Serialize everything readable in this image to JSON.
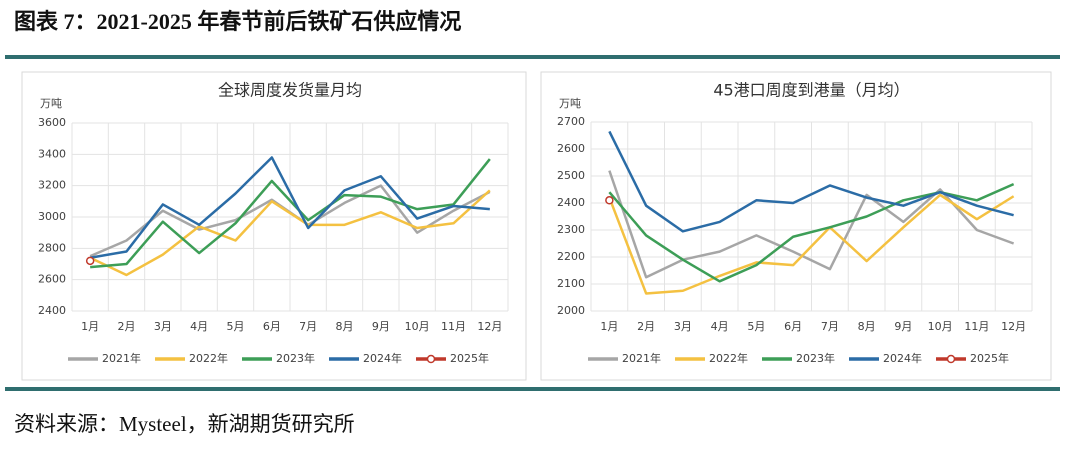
{
  "header": {
    "title": "图表 7：2021-2025 年春节前后铁矿石供应情况"
  },
  "source": "资料来源：Mysteel，新湖期货研究所",
  "chart_data": [
    {
      "type": "line",
      "title": "全球周度发货量月均",
      "y_unit_label": "万吨",
      "categories": [
        "1月",
        "2月",
        "3月",
        "4月",
        "5月",
        "6月",
        "7月",
        "8月",
        "9月",
        "10月",
        "11月",
        "12月"
      ],
      "ylim": [
        2400,
        3600
      ],
      "yticks": [
        2400,
        2600,
        2800,
        3000,
        3200,
        3400,
        3600
      ],
      "grid": true,
      "legend": "bottom",
      "series": [
        {
          "name": "2021年",
          "color": "#a6a6a6",
          "values": [
            2750,
            2850,
            3040,
            2920,
            2980,
            3110,
            2950,
            3090,
            3200,
            2900,
            3040,
            3160
          ]
        },
        {
          "name": "2022年",
          "color": "#f4c141",
          "values": [
            2740,
            2630,
            2760,
            2940,
            2850,
            3100,
            2950,
            2950,
            3030,
            2930,
            2960,
            3170
          ]
        },
        {
          "name": "2023年",
          "color": "#3d9e57",
          "values": [
            2680,
            2700,
            2970,
            2770,
            2960,
            3230,
            2980,
            3140,
            3130,
            3050,
            3080,
            3370
          ]
        },
        {
          "name": "2024年",
          "color": "#2b6ca6",
          "values": [
            2740,
            2780,
            3080,
            2950,
            3150,
            3380,
            2930,
            3170,
            3260,
            2990,
            3070,
            3050
          ]
        },
        {
          "name": "2025年",
          "color": "#c0392b",
          "marker": "circle",
          "values": [
            2720,
            null,
            null,
            null,
            null,
            null,
            null,
            null,
            null,
            null,
            null,
            null
          ]
        }
      ]
    },
    {
      "type": "line",
      "title": "45港口周度到港量（月均）",
      "y_unit_label": "万吨",
      "categories": [
        "1月",
        "2月",
        "3月",
        "4月",
        "5月",
        "6月",
        "7月",
        "8月",
        "9月",
        "10月",
        "11月",
        "12月"
      ],
      "ylim": [
        2000,
        2700
      ],
      "yticks": [
        2000,
        2100,
        2200,
        2300,
        2400,
        2500,
        2600,
        2700
      ],
      "grid": true,
      "legend": "bottom",
      "series": [
        {
          "name": "2021年",
          "color": "#a6a6a6",
          "values": [
            2520,
            2125,
            2190,
            2220,
            2280,
            2220,
            2155,
            2430,
            2330,
            2450,
            2300,
            2250
          ]
        },
        {
          "name": "2022年",
          "color": "#f4c141",
          "values": [
            2420,
            2065,
            2075,
            2130,
            2180,
            2170,
            2310,
            2185,
            2310,
            2430,
            2340,
            2425
          ]
        },
        {
          "name": "2023年",
          "color": "#3d9e57",
          "values": [
            2440,
            2280,
            2190,
            2110,
            2170,
            2275,
            2310,
            2350,
            2410,
            2440,
            2410,
            2470
          ]
        },
        {
          "name": "2024年",
          "color": "#2b6ca6",
          "values": [
            2665,
            2390,
            2295,
            2330,
            2410,
            2400,
            2465,
            2420,
            2390,
            2440,
            2390,
            2355
          ]
        },
        {
          "name": "2025年",
          "color": "#c0392b",
          "marker": "circle",
          "values": [
            2410,
            null,
            null,
            null,
            null,
            null,
            null,
            null,
            null,
            null,
            null,
            null
          ]
        }
      ]
    }
  ]
}
